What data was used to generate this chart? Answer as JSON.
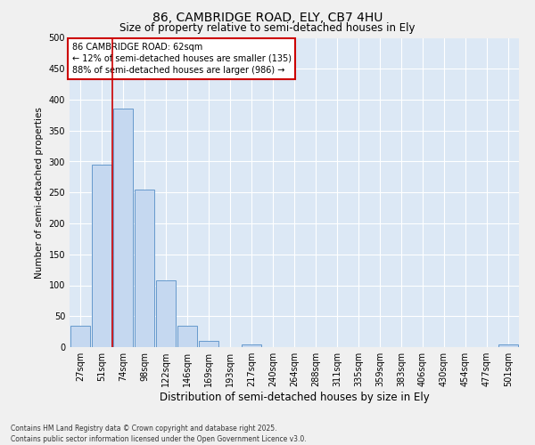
{
  "title1": "86, CAMBRIDGE ROAD, ELY, CB7 4HU",
  "title2": "Size of property relative to semi-detached houses in Ely",
  "xlabel": "Distribution of semi-detached houses by size in Ely",
  "ylabel": "Number of semi-detached properties",
  "annotation_line1": "86 CAMBRIDGE ROAD: 62sqm",
  "annotation_line2": "← 12% of semi-detached houses are smaller (135)",
  "annotation_line3": "88% of semi-detached houses are larger (986) →",
  "categories": [
    "27sqm",
    "51sqm",
    "74sqm",
    "98sqm",
    "122sqm",
    "146sqm",
    "169sqm",
    "193sqm",
    "217sqm",
    "240sqm",
    "264sqm",
    "288sqm",
    "311sqm",
    "335sqm",
    "359sqm",
    "383sqm",
    "406sqm",
    "430sqm",
    "454sqm",
    "477sqm",
    "501sqm"
  ],
  "values": [
    35,
    295,
    385,
    255,
    108,
    35,
    10,
    0,
    5,
    0,
    0,
    0,
    0,
    0,
    0,
    0,
    0,
    0,
    0,
    0,
    5
  ],
  "bar_color": "#c5d8f0",
  "bar_edge_color": "#6699cc",
  "vline_color": "#cc0000",
  "vline_x": 1.5,
  "annotation_box_color": "#ffffff",
  "annotation_box_edge_color": "#cc0000",
  "plot_background_color": "#dce8f5",
  "fig_background_color": "#f0f0f0",
  "grid_color": "#ffffff",
  "ylim": [
    0,
    500
  ],
  "yticks": [
    0,
    50,
    100,
    150,
    200,
    250,
    300,
    350,
    400,
    450,
    500
  ],
  "title1_fontsize": 10,
  "title2_fontsize": 8.5,
  "ylabel_fontsize": 7.5,
  "xlabel_fontsize": 8.5,
  "tick_fontsize": 7,
  "footer1": "Contains HM Land Registry data © Crown copyright and database right 2025.",
  "footer2": "Contains public sector information licensed under the Open Government Licence v3.0."
}
